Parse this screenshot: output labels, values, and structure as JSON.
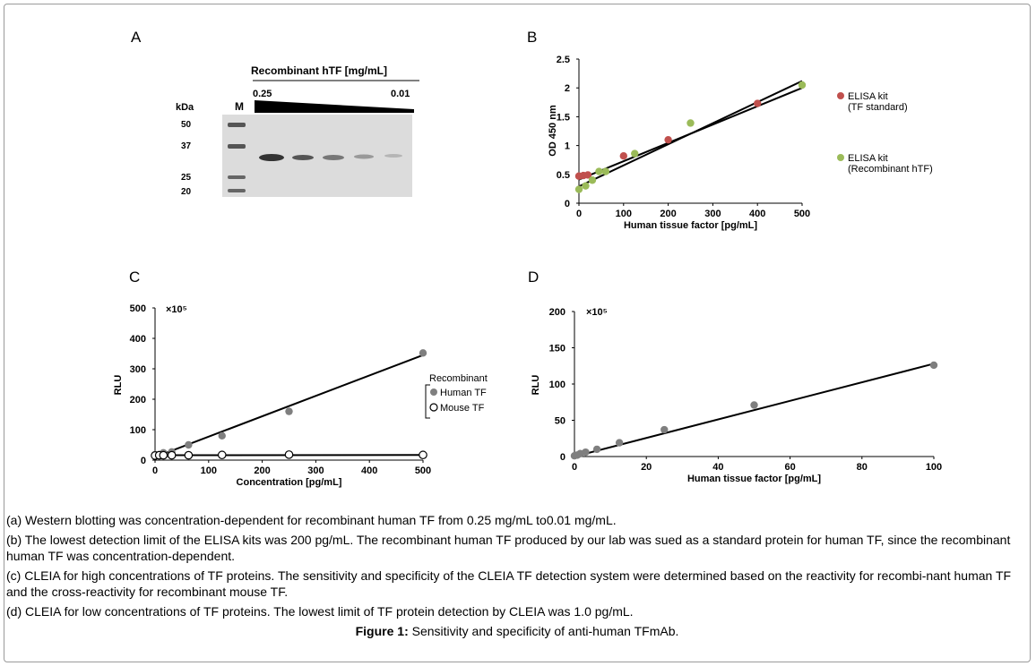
{
  "panels": {
    "A": {
      "letter": "A",
      "title": "Recombinant hTF [mg/mL]",
      "conc_high": "0.25",
      "conc_low": "0.01",
      "kda_label": "kDa",
      "marker_label": "M",
      "marker_sizes": [
        "50",
        "37",
        "25",
        "20"
      ]
    },
    "B": {
      "letter": "B"
    },
    "C": {
      "letter": "C"
    },
    "D": {
      "letter": "D"
    }
  },
  "chart_data": [
    {
      "id": "B",
      "type": "scatter",
      "xlabel": "Human tissue factor [pg/mL]",
      "ylabel": "OD 450 nm",
      "xlim": [
        0,
        500
      ],
      "ylim": [
        0,
        2.5
      ],
      "xticks": [
        "0",
        "100",
        "200",
        "300",
        "400",
        "500"
      ],
      "yticks": [
        "0",
        "0.5",
        "1",
        "1.5",
        "2",
        "2.5"
      ],
      "legend_position": "right",
      "series": [
        {
          "name": "ELISA kit (TF standard)",
          "label_lines": [
            "ELISA kit",
            "(TF standard)"
          ],
          "color": "#c0504d",
          "x": [
            0,
            10,
            20,
            100,
            200,
            400
          ],
          "y": [
            0.47,
            0.48,
            0.49,
            0.82,
            1.1,
            1.73
          ]
        },
        {
          "name": "ELISA kit (Recombinant hTF)",
          "label_lines": [
            "ELISA kit",
            "(Recombinant hTF)"
          ],
          "color": "#9bbb59",
          "x": [
            0,
            15,
            30,
            45,
            60,
            125,
            250,
            500
          ],
          "y": [
            0.24,
            0.3,
            0.4,
            0.55,
            0.55,
            0.86,
            1.39,
            2.05
          ]
        }
      ],
      "fits": [
        {
          "x": [
            0,
            500
          ],
          "y": [
            0.41,
            2.0
          ]
        },
        {
          "x": [
            0,
            500
          ],
          "y": [
            0.29,
            2.12
          ]
        }
      ]
    },
    {
      "id": "C",
      "type": "scatter",
      "xlabel": "Concentration [pg/mL]",
      "ylabel": "RLU",
      "multiplier": "×10⁵",
      "xlim": [
        0,
        500
      ],
      "ylim": [
        0,
        500
      ],
      "xticks": [
        "0",
        "100",
        "200",
        "300",
        "400",
        "500"
      ],
      "yticks": [
        "0",
        "100",
        "200",
        "300",
        "400",
        "500"
      ],
      "legend_title": "Recombinant",
      "legend_position": "right",
      "series": [
        {
          "name": "Human TF",
          "color": "#7f7f7f",
          "filled": true,
          "x": [
            0,
            7.8,
            15.6,
            31.2,
            62.5,
            125,
            250,
            500
          ],
          "y": [
            18,
            18,
            24,
            27,
            50,
            80,
            160,
            352
          ]
        },
        {
          "name": "Mouse TF",
          "color": "#000000",
          "filled": false,
          "x": [
            0,
            7.8,
            15.6,
            31.2,
            62.5,
            125,
            250,
            500
          ],
          "y": [
            15,
            16,
            16,
            16,
            16,
            17,
            18,
            17
          ]
        }
      ],
      "fits": [
        {
          "x": [
            0,
            500
          ],
          "y": [
            10,
            345
          ]
        },
        {
          "x": [
            0,
            500
          ],
          "y": [
            16,
            17
          ]
        }
      ]
    },
    {
      "id": "D",
      "type": "scatter",
      "xlabel": "Human tissue factor [pg/mL]",
      "ylabel": "RLU",
      "multiplier": "×10⁵",
      "xlim": [
        0,
        100
      ],
      "ylim": [
        0,
        200
      ],
      "xticks": [
        "0",
        "20",
        "40",
        "60",
        "80",
        "100"
      ],
      "yticks": [
        "0",
        "50",
        "100",
        "150",
        "200"
      ],
      "series": [
        {
          "name": "",
          "color": "#7f7f7f",
          "filled": true,
          "x": [
            0,
            0.8,
            1.6,
            3.1,
            6.25,
            12.5,
            25,
            50,
            100
          ],
          "y": [
            1,
            2,
            4,
            6,
            10,
            19,
            37,
            71,
            126
          ]
        }
      ],
      "fits": [
        {
          "x": [
            0,
            100
          ],
          "y": [
            0,
            128
          ]
        }
      ]
    }
  ],
  "captions": {
    "a": "(a) Western blotting was concentration-dependent for recombinant human TF from 0.25 mg/mL to0.01 mg/mL.",
    "b": "(b) The lowest detection limit of the ELISA kits was 200 pg/mL. The recombinant human TF produced by our lab was sued as a standard protein for human TF, since the recombinant human TF was concentration-dependent.",
    "c": "(c) CLEIA for high concentrations of TF proteins. The sensitivity and specificity of the CLEIA TF detection system were determined based on the reactivity for recombi-nant human TF and the cross-reactivity for recombinant mouse TF.",
    "d": "(d) CLEIA for low concentrations of TF proteins. The lowest limit of TF protein detection by CLEIA was 1.0 pg/mL.",
    "figure_label": "Figure 1:",
    "figure_text": " Sensitivity and specificity of anti-human TFmAb."
  }
}
